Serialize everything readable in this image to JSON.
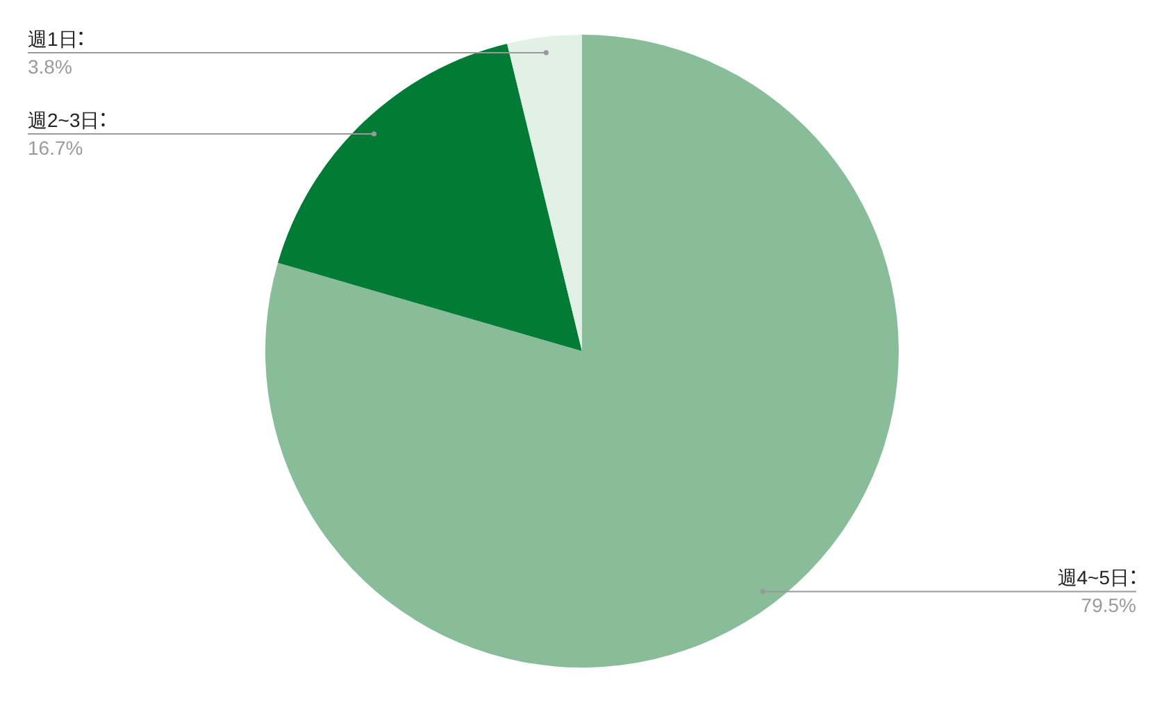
{
  "chart_data": {
    "type": "pie",
    "categories": [
      "週4~5日",
      "週2~3日",
      "週1日"
    ],
    "values": [
      79.5,
      16.7,
      3.8
    ],
    "value_labels": [
      "79.5%",
      "16.7%",
      "3.8%"
    ],
    "colors": [
      "#89bd99",
      "#027b36",
      "#e1f1e5"
    ]
  }
}
